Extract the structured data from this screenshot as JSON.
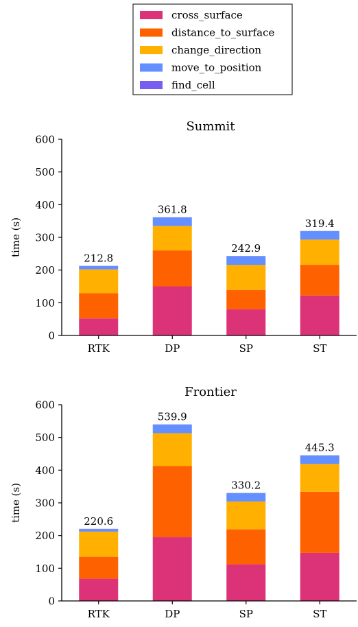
{
  "legend": {
    "items": [
      {
        "label": "cross_surface",
        "color": "#dc3278"
      },
      {
        "label": "distance_to_surface",
        "color": "#fe6100"
      },
      {
        "label": "change_direction",
        "color": "#ffb000"
      },
      {
        "label": "move_to_position",
        "color": "#648fff"
      },
      {
        "label": "find_cell",
        "color": "#785ef0"
      }
    ]
  },
  "chart_data": [
    {
      "type": "bar",
      "stacked": true,
      "title": "Summit",
      "ylabel": "time (s)",
      "ylim": [
        0,
        600
      ],
      "yticks": [
        0,
        100,
        200,
        300,
        400,
        500,
        600
      ],
      "categories": [
        "RTK",
        "DP",
        "SP",
        "ST"
      ],
      "totals": [
        "212.8",
        "361.8",
        "242.9",
        "319.4"
      ],
      "series": [
        {
          "name": "cross_surface",
          "color": "#dc3278",
          "values": [
            52,
            150,
            80,
            122
          ]
        },
        {
          "name": "distance_to_surface",
          "color": "#fe6100",
          "values": [
            77,
            110,
            59,
            94
          ]
        },
        {
          "name": "change_direction",
          "color": "#ffb000",
          "values": [
            73,
            75,
            77,
            77
          ]
        },
        {
          "name": "move_to_position",
          "color": "#648fff",
          "values": [
            10.3,
            26.3,
            26.4,
            26
          ]
        },
        {
          "name": "find_cell",
          "color": "#785ef0",
          "values": [
            0.5,
            0.5,
            0.5,
            0.4
          ]
        }
      ]
    },
    {
      "type": "bar",
      "stacked": true,
      "title": "Frontier",
      "ylabel": "time (s)",
      "ylim": [
        0,
        600
      ],
      "yticks": [
        0,
        100,
        200,
        300,
        400,
        500,
        600
      ],
      "categories": [
        "RTK",
        "DP",
        "SP",
        "ST"
      ],
      "totals": [
        "220.6",
        "539.9",
        "330.2",
        "445.3"
      ],
      "series": [
        {
          "name": "cross_surface",
          "color": "#dc3278",
          "values": [
            68,
            195,
            112,
            147
          ]
        },
        {
          "name": "distance_to_surface",
          "color": "#fe6100",
          "values": [
            67,
            218,
            107,
            187
          ]
        },
        {
          "name": "change_direction",
          "color": "#ffb000",
          "values": [
            77,
            100,
            85,
            85
          ]
        },
        {
          "name": "move_to_position",
          "color": "#648fff",
          "values": [
            8.1,
            26.4,
            25.7,
            25.8
          ]
        },
        {
          "name": "find_cell",
          "color": "#785ef0",
          "values": [
            0.5,
            0.5,
            0.5,
            0.5
          ]
        }
      ]
    }
  ]
}
